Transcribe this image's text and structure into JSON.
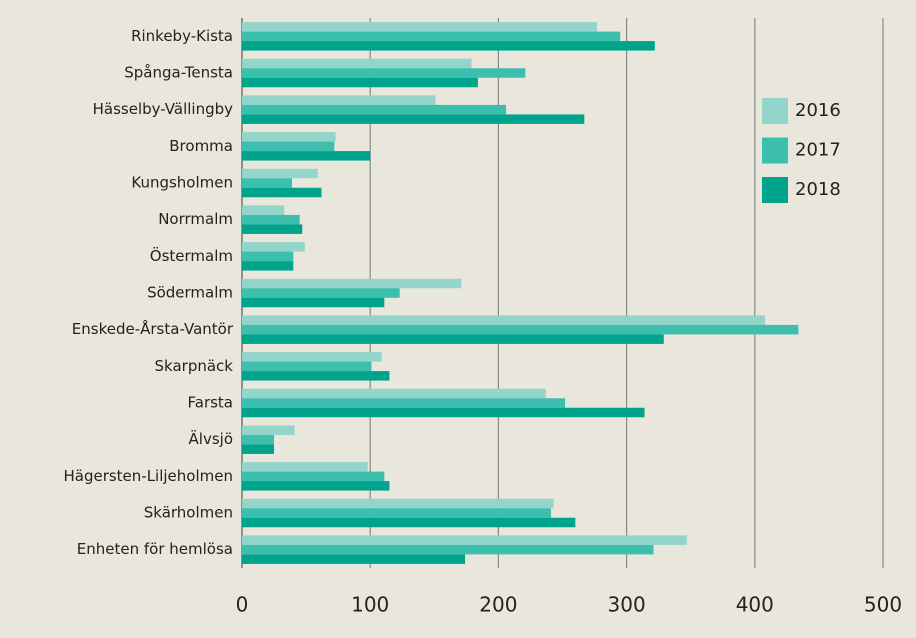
{
  "chart_data": {
    "type": "barh",
    "categories": [
      "Rinkeby-Kista",
      "Spånga-Tensta",
      "Hässelby-Vällingby",
      "Bromma",
      "Kungsholmen",
      "Norrmalm",
      "Östermalm",
      "Södermalm",
      "Enskede-Årsta-Vantör",
      "Skarpnäck",
      "Farsta",
      "Älvsjö",
      "Hägersten-Liljeholmen",
      "Skärholmen",
      "Enheten för hemlösa"
    ],
    "series": [
      {
        "name": "2016",
        "color": "#93d5ca",
        "values": [
          277,
          179,
          151,
          73,
          59,
          33,
          49,
          171,
          408,
          109,
          237,
          41,
          98,
          243,
          347
        ]
      },
      {
        "name": "2017",
        "color": "#3dbfae",
        "values": [
          295,
          221,
          206,
          72,
          39,
          45,
          40,
          123,
          434,
          101,
          252,
          25,
          111,
          241,
          321
        ]
      },
      {
        "name": "2018",
        "color": "#00a38c",
        "values": [
          322,
          184,
          267,
          100,
          62,
          47,
          40,
          111,
          329,
          115,
          314,
          25,
          115,
          260,
          174
        ]
      }
    ],
    "xlim": [
      0,
      500
    ],
    "xticks": [
      0,
      100,
      200,
      300,
      400,
      500
    ],
    "grid": true,
    "legend": "upper right"
  }
}
